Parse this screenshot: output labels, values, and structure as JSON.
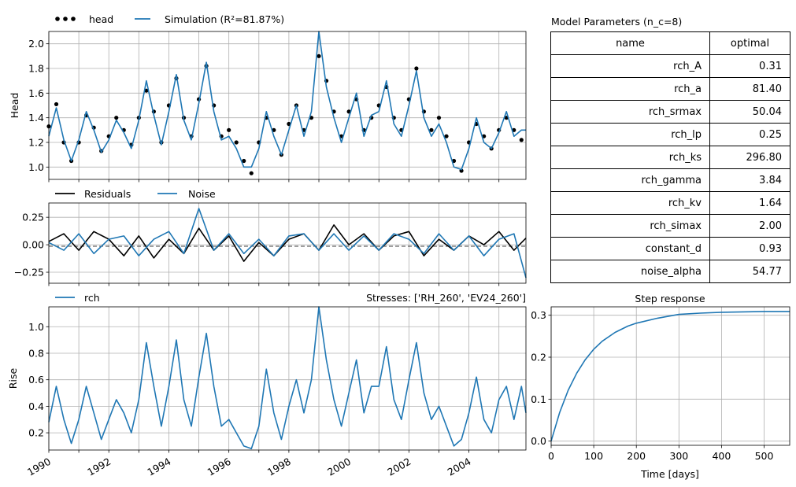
{
  "colors": {
    "head": "#000000",
    "simulation": "#1f77b4",
    "residuals": "#000000",
    "noise": "#1f77b4",
    "rch": "#1f77b4",
    "step": "#1f77b4"
  },
  "params": {
    "title": "Model Parameters (n_c=8)",
    "columns": [
      "name",
      "optimal"
    ],
    "rows": [
      {
        "name": "rch_A",
        "optimal": "0.31"
      },
      {
        "name": "rch_a",
        "optimal": "81.40"
      },
      {
        "name": "rch_srmax",
        "optimal": "50.04"
      },
      {
        "name": "rch_lp",
        "optimal": "0.25"
      },
      {
        "name": "rch_ks",
        "optimal": "296.80"
      },
      {
        "name": "rch_gamma",
        "optimal": "3.84"
      },
      {
        "name": "rch_kv",
        "optimal": "1.64"
      },
      {
        "name": "rch_simax",
        "optimal": "2.00"
      },
      {
        "name": "constant_d",
        "optimal": "0.93"
      },
      {
        "name": "noise_alpha",
        "optimal": "54.77"
      }
    ]
  },
  "chart_data": [
    {
      "type": "scatter",
      "name": "head-panel",
      "ylabel": "Head",
      "xlim": [
        1990,
        2005.9
      ],
      "ylim": [
        0.9,
        2.1
      ],
      "yticks": [
        "1.0",
        "1.2",
        "1.4",
        "1.6",
        "1.8",
        "2.0"
      ],
      "grid": true,
      "legend": [
        "head",
        "Simulation (R²=81.87%)"
      ],
      "series": [
        {
          "name": "head",
          "x": [
            1990.0,
            1990.25,
            1990.5,
            1990.75,
            1991.0,
            1991.25,
            1991.5,
            1991.75,
            1992.0,
            1992.25,
            1992.5,
            1992.75,
            1993.0,
            1993.25,
            1993.5,
            1993.75,
            1994.0,
            1994.25,
            1994.5,
            1994.75,
            1995.0,
            1995.25,
            1995.5,
            1995.75,
            1996.0,
            1996.25,
            1996.5,
            1996.75,
            1997.0,
            1997.25,
            1997.5,
            1997.75,
            1998.0,
            1998.25,
            1998.5,
            1998.75,
            1999.0,
            1999.25,
            1999.5,
            1999.75,
            2000.0,
            2000.25,
            2000.5,
            2000.75,
            2001.0,
            2001.25,
            2001.5,
            2001.75,
            2002.0,
            2002.25,
            2002.5,
            2002.75,
            2003.0,
            2003.25,
            2003.5,
            2003.75,
            2004.0,
            2004.25,
            2004.5,
            2004.75,
            2005.0,
            2005.25,
            2005.5,
            2005.75
          ],
          "y": [
            1.33,
            1.51,
            1.2,
            1.05,
            1.2,
            1.42,
            1.32,
            1.13,
            1.25,
            1.4,
            1.3,
            1.18,
            1.4,
            1.62,
            1.45,
            1.2,
            1.5,
            1.72,
            1.4,
            1.25,
            1.55,
            1.82,
            1.5,
            1.25,
            1.3,
            1.2,
            1.05,
            0.95,
            1.2,
            1.4,
            1.3,
            1.1,
            1.35,
            1.5,
            1.3,
            1.4,
            1.9,
            1.7,
            1.45,
            1.25,
            1.45,
            1.55,
            1.3,
            1.4,
            1.5,
            1.65,
            1.4,
            1.3,
            1.55,
            1.8,
            1.45,
            1.3,
            1.4,
            1.25,
            1.05,
            0.97,
            1.2,
            1.35,
            1.25,
            1.15,
            1.3,
            1.4,
            1.3,
            1.22
          ]
        },
        {
          "name": "Simulation (R²=81.87%)",
          "x": [
            1990.0,
            1990.25,
            1990.5,
            1990.75,
            1991.0,
            1991.25,
            1991.5,
            1991.75,
            1992.0,
            1992.25,
            1992.5,
            1992.75,
            1993.0,
            1993.25,
            1993.5,
            1993.75,
            1994.0,
            1994.25,
            1994.5,
            1994.75,
            1995.0,
            1995.25,
            1995.5,
            1995.75,
            1996.0,
            1996.25,
            1996.5,
            1996.75,
            1997.0,
            1997.25,
            1997.5,
            1997.75,
            1998.0,
            1998.25,
            1998.5,
            1998.75,
            1999.0,
            1999.25,
            1999.5,
            1999.75,
            2000.0,
            2000.25,
            2000.5,
            2000.75,
            2001.0,
            2001.25,
            2001.5,
            2001.75,
            2002.0,
            2002.25,
            2002.5,
            2002.75,
            2003.0,
            2003.25,
            2003.5,
            2003.75,
            2004.0,
            2004.25,
            2004.5,
            2004.75,
            2005.0,
            2005.25,
            2005.5,
            2005.75,
            2005.9
          ],
          "y": [
            1.25,
            1.48,
            1.22,
            1.05,
            1.22,
            1.45,
            1.3,
            1.12,
            1.22,
            1.38,
            1.28,
            1.15,
            1.38,
            1.7,
            1.42,
            1.18,
            1.45,
            1.75,
            1.38,
            1.22,
            1.52,
            1.85,
            1.45,
            1.22,
            1.25,
            1.15,
            1.0,
            1.0,
            1.15,
            1.45,
            1.25,
            1.1,
            1.3,
            1.5,
            1.25,
            1.45,
            2.1,
            1.65,
            1.4,
            1.2,
            1.4,
            1.6,
            1.25,
            1.42,
            1.45,
            1.7,
            1.35,
            1.25,
            1.5,
            1.78,
            1.4,
            1.25,
            1.35,
            1.2,
            1.0,
            0.98,
            1.15,
            1.4,
            1.2,
            1.15,
            1.28,
            1.45,
            1.25,
            1.3,
            1.3
          ]
        }
      ]
    },
    {
      "type": "line",
      "name": "residuals-panel",
      "xlim": [
        1990,
        2005.9
      ],
      "ylim": [
        -0.35,
        0.38
      ],
      "yticks": [
        "0.25",
        "0.00",
        "−0.25"
      ],
      "grid": true,
      "legend": [
        "Residuals",
        "Noise"
      ],
      "series": [
        {
          "name": "Residuals",
          "x": [
            1990.0,
            1990.5,
            1991.0,
            1991.5,
            1992.0,
            1992.5,
            1993.0,
            1993.5,
            1994.0,
            1994.5,
            1995.0,
            1995.5,
            1996.0,
            1996.5,
            1997.0,
            1997.5,
            1998.0,
            1998.5,
            1999.0,
            1999.5,
            2000.0,
            2000.5,
            2001.0,
            2001.5,
            2002.0,
            2002.5,
            2003.0,
            2003.5,
            2004.0,
            2004.5,
            2005.0,
            2005.5,
            2005.9
          ],
          "y": [
            0.03,
            0.1,
            -0.05,
            0.12,
            0.05,
            -0.1,
            0.08,
            -0.12,
            0.05,
            -0.08,
            0.15,
            -0.05,
            0.08,
            -0.15,
            0.02,
            -0.1,
            0.05,
            0.1,
            -0.05,
            0.18,
            0.0,
            0.1,
            -0.05,
            0.08,
            0.12,
            -0.1,
            0.05,
            -0.05,
            0.08,
            0.0,
            0.12,
            -0.05,
            0.06
          ]
        },
        {
          "name": "Noise",
          "x": [
            1990.0,
            1990.5,
            1991.0,
            1991.5,
            1992.0,
            1992.5,
            1993.0,
            1993.5,
            1994.0,
            1994.5,
            1995.0,
            1995.5,
            1996.0,
            1996.5,
            1997.0,
            1997.5,
            1998.0,
            1998.5,
            1999.0,
            1999.5,
            2000.0,
            2000.5,
            2001.0,
            2001.5,
            2002.0,
            2002.5,
            2003.0,
            2003.5,
            2004.0,
            2004.5,
            2005.0,
            2005.5,
            2005.9
          ],
          "y": [
            0.02,
            -0.05,
            0.1,
            -0.08,
            0.05,
            0.08,
            -0.1,
            0.05,
            0.12,
            -0.08,
            0.33,
            -0.05,
            0.1,
            -0.08,
            0.05,
            -0.1,
            0.08,
            0.1,
            -0.05,
            0.1,
            -0.05,
            0.08,
            -0.05,
            0.1,
            0.05,
            -0.08,
            0.1,
            -0.05,
            0.08,
            -0.1,
            0.05,
            0.1,
            -0.3
          ]
        }
      ]
    },
    {
      "type": "line",
      "name": "rise-panel",
      "ylabel": "Rise",
      "title": "Stresses: ['RH_260', 'EV24_260']",
      "xlim": [
        1990,
        2005.9
      ],
      "ylim": [
        0.07,
        1.15
      ],
      "yticks": [
        "0.2",
        "0.4",
        "0.6",
        "0.8",
        "1.0"
      ],
      "xticks": [
        "1990",
        "1992",
        "1994",
        "1996",
        "1998",
        "2000",
        "2002",
        "2004"
      ],
      "grid": true,
      "legend": [
        "rch"
      ],
      "series": [
        {
          "name": "rch",
          "x": [
            1990.0,
            1990.25,
            1990.5,
            1990.75,
            1991.0,
            1991.25,
            1991.5,
            1991.75,
            1992.0,
            1992.25,
            1992.5,
            1992.75,
            1993.0,
            1993.25,
            1993.5,
            1993.75,
            1994.0,
            1994.25,
            1994.5,
            1994.75,
            1995.0,
            1995.25,
            1995.5,
            1995.75,
            1996.0,
            1996.25,
            1996.5,
            1996.75,
            1997.0,
            1997.25,
            1997.5,
            1997.75,
            1998.0,
            1998.25,
            1998.5,
            1998.75,
            1999.0,
            1999.25,
            1999.5,
            1999.75,
            2000.0,
            2000.25,
            2000.5,
            2000.75,
            2001.0,
            2001.25,
            2001.5,
            2001.75,
            2002.0,
            2002.25,
            2002.5,
            2002.75,
            2003.0,
            2003.25,
            2003.5,
            2003.75,
            2004.0,
            2004.25,
            2004.5,
            2004.75,
            2005.0,
            2005.25,
            2005.5,
            2005.75,
            2005.9
          ],
          "y": [
            0.28,
            0.55,
            0.3,
            0.12,
            0.3,
            0.55,
            0.35,
            0.15,
            0.3,
            0.45,
            0.35,
            0.2,
            0.45,
            0.88,
            0.55,
            0.25,
            0.55,
            0.9,
            0.45,
            0.25,
            0.62,
            0.95,
            0.55,
            0.25,
            0.3,
            0.2,
            0.1,
            0.08,
            0.25,
            0.68,
            0.35,
            0.15,
            0.4,
            0.6,
            0.35,
            0.6,
            1.15,
            0.75,
            0.45,
            0.25,
            0.5,
            0.75,
            0.35,
            0.55,
            0.55,
            0.85,
            0.45,
            0.3,
            0.6,
            0.88,
            0.5,
            0.3,
            0.4,
            0.25,
            0.1,
            0.15,
            0.35,
            0.62,
            0.3,
            0.2,
            0.45,
            0.55,
            0.3,
            0.55,
            0.35
          ]
        }
      ]
    },
    {
      "type": "line",
      "name": "step-response",
      "title": "Step response",
      "xlabel": "Time [days]",
      "xlim": [
        0,
        560
      ],
      "ylim": [
        -0.01,
        0.32
      ],
      "xticks": [
        "0",
        "100",
        "200",
        "300",
        "400",
        "500"
      ],
      "yticks": [
        "0.0",
        "0.1",
        "0.2",
        "0.3"
      ],
      "grid": true,
      "series": [
        {
          "name": "step",
          "x": [
            0,
            20,
            40,
            60,
            80,
            100,
            120,
            150,
            180,
            200,
            250,
            300,
            350,
            400,
            450,
            500,
            560
          ],
          "y": [
            0.0,
            0.068,
            0.121,
            0.162,
            0.194,
            0.219,
            0.238,
            0.259,
            0.274,
            0.281,
            0.293,
            0.302,
            0.305,
            0.307,
            0.308,
            0.309,
            0.309
          ]
        }
      ]
    }
  ]
}
